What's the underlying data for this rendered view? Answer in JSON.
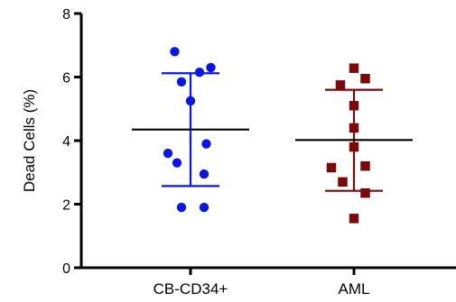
{
  "chart_data": {
    "type": "scatter",
    "title": "",
    "xlabel": "",
    "ylabel": "Dead Cells (%)",
    "ylim": [
      0,
      8
    ],
    "yticks": [
      0,
      2,
      4,
      6,
      8
    ],
    "grid": false,
    "categories": [
      "CB-CD34+",
      "AML"
    ],
    "series": [
      {
        "category": "CB-CD34+",
        "marker": "circle",
        "color": "#0a16e6",
        "points": [
          {
            "offset": -0.35,
            "value": 6.8
          },
          {
            "offset": 0.45,
            "value": 6.3
          },
          {
            "offset": 0.2,
            "value": 6.15
          },
          {
            "offset": -0.2,
            "value": 5.85
          },
          {
            "offset": 0.0,
            "value": 5.25
          },
          {
            "offset": 0.35,
            "value": 3.9
          },
          {
            "offset": -0.5,
            "value": 3.6
          },
          {
            "offset": -0.3,
            "value": 3.3
          },
          {
            "offset": 0.3,
            "value": 2.95
          },
          {
            "offset": -0.2,
            "value": 1.9
          },
          {
            "offset": 0.3,
            "value": 1.9
          }
        ],
        "mean": 4.35,
        "sd_upper": 6.12,
        "sd_lower": 2.57
      },
      {
        "category": "AML",
        "marker": "square",
        "color": "#7a0a0a",
        "points": [
          {
            "offset": 0.0,
            "value": 6.28
          },
          {
            "offset": 0.25,
            "value": 5.95
          },
          {
            "offset": -0.3,
            "value": 5.75
          },
          {
            "offset": 0.0,
            "value": 5.1
          },
          {
            "offset": 0.0,
            "value": 4.4
          },
          {
            "offset": 0.0,
            "value": 3.8
          },
          {
            "offset": 0.25,
            "value": 3.2
          },
          {
            "offset": -0.5,
            "value": 3.15
          },
          {
            "offset": -0.25,
            "value": 2.7
          },
          {
            "offset": 0.25,
            "value": 2.35
          },
          {
            "offset": 0.0,
            "value": 1.55
          }
        ],
        "mean": 4.02,
        "sd_upper": 5.6,
        "sd_lower": 2.42
      }
    ],
    "colors": {
      "axis": "#000000",
      "mean_line": "#000000"
    }
  }
}
